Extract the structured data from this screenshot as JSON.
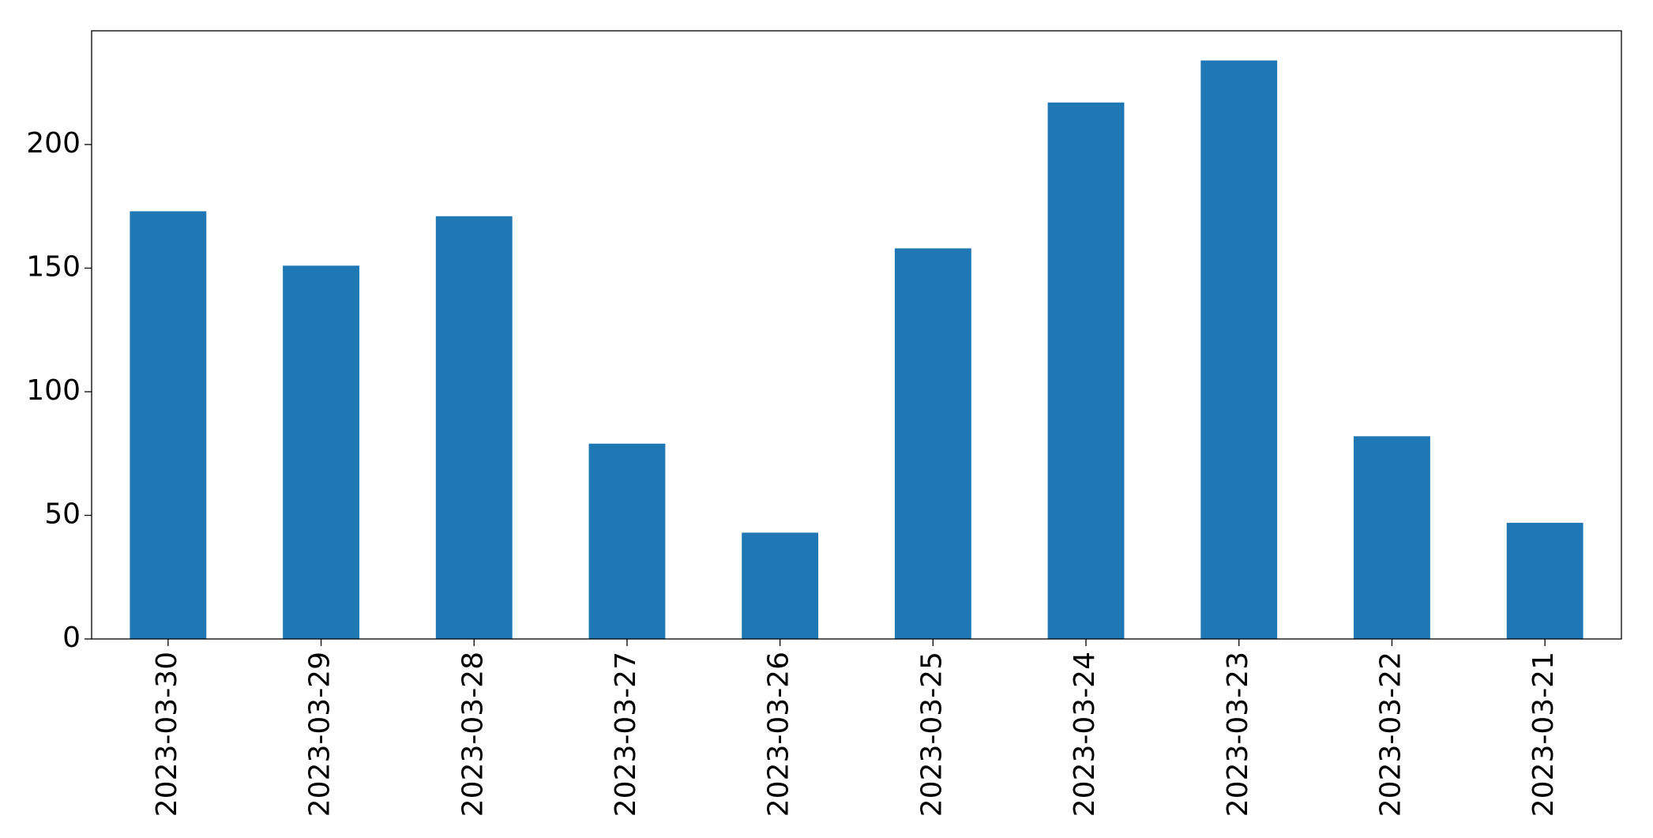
{
  "chart_data": {
    "type": "bar",
    "categories": [
      "2023-03-30",
      "2023-03-29",
      "2023-03-28",
      "2023-03-27",
      "2023-03-26",
      "2023-03-25",
      "2023-03-24",
      "2023-03-23",
      "2023-03-22",
      "2023-03-21"
    ],
    "values": [
      173,
      151,
      171,
      79,
      43,
      158,
      217,
      234,
      82,
      47
    ],
    "color": "#1f77b4",
    "ylim": [
      0,
      246
    ],
    "yticks": [
      0,
      50,
      100,
      150,
      200
    ],
    "grid": false
  }
}
